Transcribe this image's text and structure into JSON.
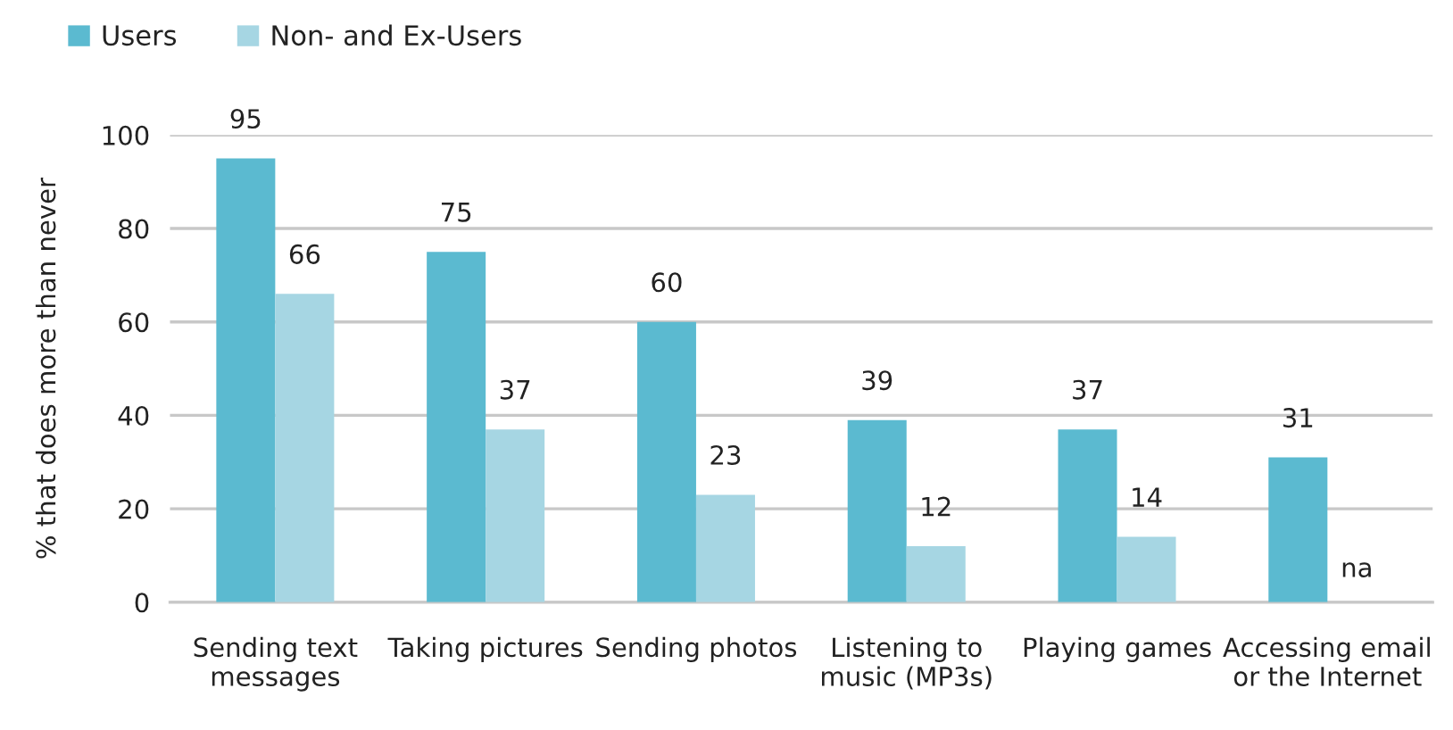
{
  "chart_data": {
    "type": "bar",
    "categories": [
      "Sending text\nmessages",
      "Taking pictures",
      "Sending photos",
      "Listening to\nmusic (MP3s)",
      "Playing games",
      "Accessing email\nor the Internet"
    ],
    "series": [
      {
        "name": "Users",
        "color": "#5bbad0",
        "values": [
          95,
          75,
          60,
          39,
          37,
          31
        ],
        "value_labels": [
          "95",
          "75",
          "60",
          "39",
          "37",
          "31"
        ]
      },
      {
        "name": "Non- and Ex-Users",
        "color": "#a6d6e3",
        "values": [
          66,
          37,
          23,
          12,
          14,
          null
        ],
        "value_labels": [
          "66",
          "37",
          "23",
          "12",
          "14",
          "na"
        ]
      }
    ],
    "ylabel": "% that does more than never",
    "ylim": [
      0,
      100
    ],
    "yticks": [
      0,
      20,
      40,
      60,
      80,
      100
    ],
    "grid": "y",
    "legend": "top left"
  }
}
